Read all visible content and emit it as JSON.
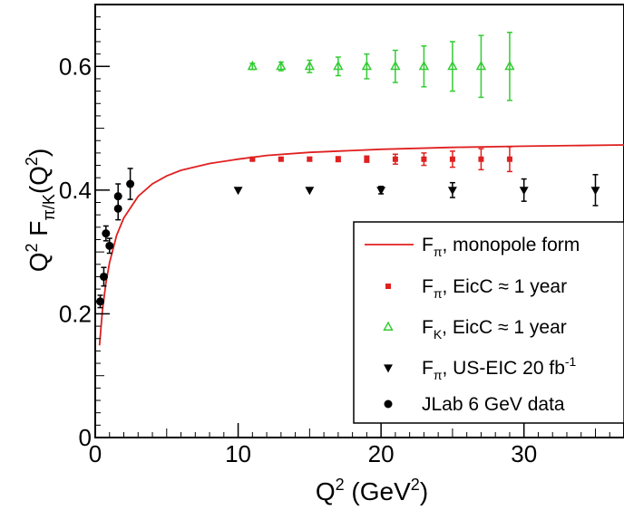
{
  "chart_data": {
    "type": "scatter",
    "xlabel": "Q² (GeV²)",
    "ylabel": "Q² F_{π/K}(Q²)",
    "xlim": [
      0,
      37
    ],
    "ylim": [
      0,
      0.7
    ],
    "x_ticks": [
      0,
      10,
      20,
      30
    ],
    "y_ticks": [
      0,
      0.2,
      0.4,
      0.6
    ],
    "x_tick_labels": [
      "0",
      "10",
      "20",
      "30"
    ],
    "y_tick_labels": [
      "0",
      "0.2",
      "0.4",
      "0.6"
    ],
    "grid": false,
    "legend_position": "bottom-right",
    "series": [
      {
        "key": "monopole",
        "name": "F_π, monopole form",
        "name_main": "F",
        "name_sub": "π",
        "name_rest": ", monopole form",
        "type": "line",
        "color": "#e02020",
        "x": [
          0.3,
          0.5,
          0.75,
          1,
          1.5,
          2,
          3,
          4,
          5,
          6,
          8,
          10,
          12,
          15,
          20,
          25,
          30,
          37
        ],
        "y": [
          0.149,
          0.205,
          0.25,
          0.283,
          0.327,
          0.355,
          0.39,
          0.41,
          0.423,
          0.432,
          0.443,
          0.45,
          0.456,
          0.461,
          0.466,
          0.469,
          0.471,
          0.473
        ]
      },
      {
        "key": "eicc_pi",
        "name": "F_π, EicC ≈ 1 year",
        "name_main": "F",
        "name_sub": "π",
        "name_rest": ", EicC  ≈ 1 year",
        "type": "scatter",
        "marker": "square",
        "color": "#e02020",
        "x": [
          11,
          13,
          15,
          17,
          19,
          21,
          23,
          25,
          27,
          29
        ],
        "y": [
          0.45,
          0.45,
          0.45,
          0.45,
          0.45,
          0.45,
          0.45,
          0.45,
          0.45,
          0.45
        ],
        "yerr": [
          0.002,
          0.002,
          0.003,
          0.004,
          0.005,
          0.008,
          0.01,
          0.013,
          0.017,
          0.02
        ]
      },
      {
        "key": "eicc_k",
        "name": "F_K, EicC ≈ 1 year",
        "name_main": "F",
        "name_sub": "K",
        "name_rest": ", EicC  ≈ 1 year",
        "type": "scatter",
        "marker": "triangle-up-open",
        "color": "#33cc33",
        "x": [
          11,
          13,
          15,
          17,
          19,
          21,
          23,
          25,
          27,
          29
        ],
        "y": [
          0.6,
          0.6,
          0.6,
          0.6,
          0.6,
          0.6,
          0.6,
          0.6,
          0.6,
          0.6
        ],
        "yerr": [
          0.005,
          0.007,
          0.01,
          0.015,
          0.02,
          0.026,
          0.033,
          0.04,
          0.05,
          0.055
        ]
      },
      {
        "key": "useic",
        "name": "F_π, US-EIC 20 fb⁻¹",
        "name_main": "F",
        "name_sub": "π",
        "name_rest": ", US-EIC 20 fb",
        "name_sup": "-1",
        "type": "scatter",
        "marker": "triangle-down-filled",
        "color": "#000000",
        "x": [
          10,
          15,
          20,
          25,
          30,
          35
        ],
        "y": [
          0.4,
          0.4,
          0.4,
          0.4,
          0.4,
          0.4
        ],
        "yerr": [
          0,
          0,
          0.006,
          0.012,
          0.018,
          0.025
        ]
      },
      {
        "key": "jlab",
        "name": "JLab 6 GeV data",
        "name_main": "JLab 6 GeV data",
        "name_sub": "",
        "name_rest": "",
        "type": "scatter",
        "marker": "circle-filled",
        "color": "#000000",
        "x": [
          0.35,
          0.6,
          0.75,
          1.0,
          1.6,
          1.6,
          2.45
        ],
        "y": [
          0.22,
          0.26,
          0.33,
          0.31,
          0.37,
          0.39,
          0.41
        ],
        "yerr": [
          0.01,
          0.015,
          0.012,
          0.012,
          0.018,
          0.02,
          0.025
        ]
      }
    ]
  }
}
